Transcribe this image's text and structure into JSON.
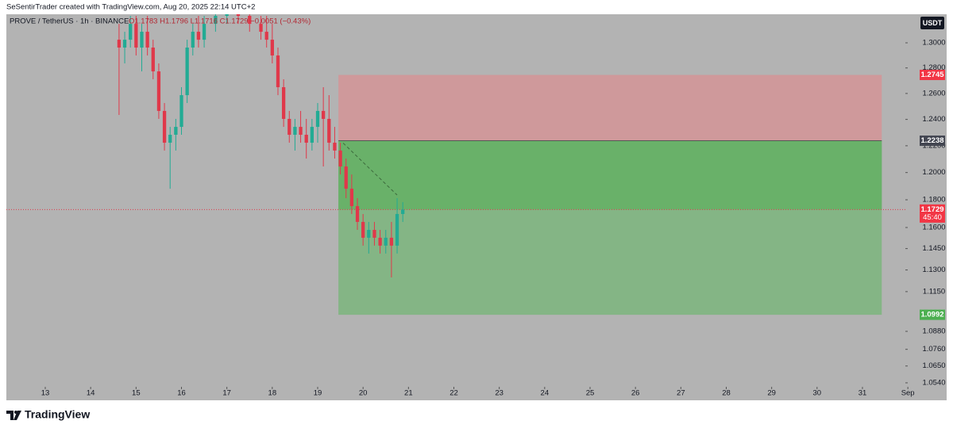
{
  "header": {
    "attribution": "SeSentirTrader created with TradingView.com, Aug 20, 2025 22:14 UTC+2"
  },
  "footer": {
    "brand": "TradingView"
  },
  "chart_data": {
    "type": "candlestick",
    "symbol_text": "PROVE / TetherUS · 1h · BINANCE",
    "ohlc_readout": "O1.1783 H1.1796 L1.1716 C1.1729 −0.0051 (−0.43%)",
    "currency": "USDT",
    "log_scale": true,
    "up_color": "#22ab94",
    "down_color": "#e0384a",
    "x": [
      14.625,
      14.75,
      14.875,
      15.0,
      15.125,
      15.25,
      15.375,
      15.5,
      15.625,
      15.75,
      15.875,
      16.0,
      16.125,
      16.25,
      16.375,
      16.5,
      16.75,
      17.0,
      17.25,
      17.5,
      17.75,
      17.875,
      18.0,
      18.125,
      18.25,
      18.375,
      18.5,
      18.625,
      18.75,
      18.875,
      19.0,
      19.125,
      19.25,
      19.375,
      19.5,
      19.625,
      19.75,
      19.875,
      20.0,
      20.125,
      20.25,
      20.375,
      20.5,
      20.625,
      20.75,
      20.875
    ],
    "open": [
      1.3025,
      1.2962,
      1.3025,
      1.3153,
      1.2962,
      1.3089,
      1.2962,
      1.2773,
      1.2465,
      1.2223,
      1.2283,
      1.2343,
      1.2587,
      1.2962,
      1.3089,
      1.3025,
      1.3153,
      1.3218,
      1.328,
      1.3218,
      1.3153,
      1.3089,
      1.3025,
      1.2899,
      1.2649,
      1.2404,
      1.2283,
      1.2343,
      1.2283,
      1.2223,
      1.2343,
      1.2465,
      1.2404,
      1.2223,
      1.2164,
      1.2045,
      1.1881,
      1.1754,
      1.164,
      1.1527,
      1.1583,
      1.1527,
      1.1471,
      1.1527,
      1.1471,
      1.1697
    ],
    "high": [
      1.3153,
      1.3089,
      1.3218,
      1.3218,
      1.3153,
      1.3218,
      1.3025,
      1.2836,
      1.2526,
      1.2343,
      1.2404,
      1.2649,
      1.3025,
      1.3153,
      1.3218,
      1.3218,
      1.33,
      1.335,
      1.335,
      1.33,
      1.3218,
      1.3218,
      1.3153,
      1.2962,
      1.2711,
      1.2465,
      1.2404,
      1.2465,
      1.2404,
      1.2404,
      1.2526,
      1.2649,
      1.2587,
      1.2343,
      1.2223,
      1.2104,
      1.1986,
      1.1812,
      1.1697,
      1.164,
      1.164,
      1.1583,
      1.1583,
      1.164,
      1.1812,
      1.1783
    ],
    "low": [
      1.2434,
      1.2836,
      1.2962,
      1.2899,
      1.2773,
      1.2899,
      1.2711,
      1.2404,
      1.2164,
      1.1881,
      1.2164,
      1.2283,
      1.2526,
      1.2899,
      1.2962,
      1.2962,
      1.3089,
      1.3153,
      1.3153,
      1.3089,
      1.3025,
      1.2962,
      1.2836,
      1.2587,
      1.2343,
      1.2223,
      1.2164,
      1.2223,
      1.2104,
      1.2164,
      1.2223,
      1.2045,
      1.2164,
      1.2104,
      1.1986,
      1.1812,
      1.1697,
      1.1583,
      1.1471,
      1.1415,
      1.1471,
      1.1415,
      1.1415,
      1.1248,
      1.1415,
      1.164
    ],
    "close": [
      1.2962,
      1.3025,
      1.3153,
      1.2962,
      1.3089,
      1.2962,
      1.2773,
      1.2465,
      1.2223,
      1.2283,
      1.2343,
      1.2587,
      1.2962,
      1.3089,
      1.3025,
      1.3153,
      1.3218,
      1.328,
      1.3218,
      1.3153,
      1.3089,
      1.3025,
      1.2899,
      1.2649,
      1.2404,
      1.2283,
      1.2343,
      1.2283,
      1.2223,
      1.2343,
      1.2465,
      1.2404,
      1.2223,
      1.2164,
      1.2045,
      1.1881,
      1.1754,
      1.164,
      1.1527,
      1.1583,
      1.1527,
      1.1471,
      1.1527,
      1.1471,
      1.1697,
      1.1729
    ],
    "xlim": [
      12.1426,
      31.9449
    ],
    "xticks": [
      13,
      14,
      15,
      16,
      17,
      18,
      19,
      20,
      21,
      22,
      23,
      24,
      25,
      26,
      27,
      28,
      29,
      30,
      31,
      {
        "value": 32,
        "label": "Sep"
      }
    ],
    "ylim": [
      1.0514,
      1.3231
    ],
    "yticks": [
      {
        "value": 1.3,
        "label": "1.3000"
      },
      {
        "value": 1.28,
        "label": "1.2800"
      },
      {
        "value": 1.26,
        "label": "1.2600"
      },
      {
        "value": 1.24,
        "label": "1.2400"
      },
      {
        "value": 1.22,
        "label": "1.2200"
      },
      {
        "value": 1.2,
        "label": "1.2000"
      },
      {
        "value": 1.18,
        "label": "1.1800"
      },
      {
        "value": 1.16,
        "label": "1.1600"
      },
      {
        "value": 1.145,
        "label": "1.1450"
      },
      {
        "value": 1.13,
        "label": "1.1300"
      },
      {
        "value": 1.115,
        "label": "1.1150"
      },
      {
        "value": 1.088,
        "label": "1.0880"
      },
      {
        "value": 1.076,
        "label": "1.0760"
      },
      {
        "value": 1.065,
        "label": "1.0650"
      },
      {
        "value": 1.054,
        "label": "1.0540"
      }
    ],
    "position": {
      "start": 19.457,
      "end": 31.425,
      "stop": 1.2745,
      "entry": 1.2238,
      "target": 1.0992
    },
    "last_price": 1.1729,
    "countdown": "45:40"
  }
}
